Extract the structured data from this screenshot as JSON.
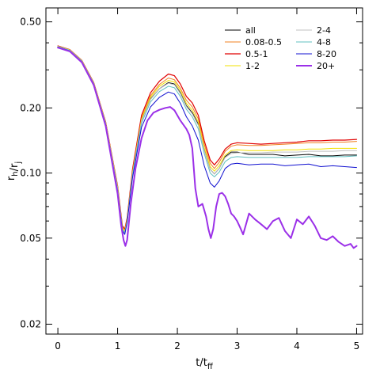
{
  "chart_data": {
    "type": "line",
    "title": "",
    "xlabel": "t/t_ff",
    "ylabel": "r_h/r_j",
    "xlim": [
      -0.2,
      5.1
    ],
    "ylim": [
      0.018,
      0.58
    ],
    "yscale": "log",
    "grid": false,
    "legend_position": "top-right",
    "x_ticks": [
      {
        "value": 0,
        "label": "0"
      },
      {
        "value": 1,
        "label": "1"
      },
      {
        "value": 2,
        "label": "2"
      },
      {
        "value": 3,
        "label": "3"
      },
      {
        "value": 4,
        "label": "4"
      },
      {
        "value": 5,
        "label": "5"
      }
    ],
    "y_ticks": [
      {
        "value": 0.02,
        "label": "0.02"
      },
      {
        "value": 0.05,
        "label": "0.05"
      },
      {
        "value": 0.1,
        "label": "0.10"
      },
      {
        "value": 0.2,
        "label": "0.20"
      },
      {
        "value": 0.5,
        "label": "0.50"
      }
    ],
    "series": [
      {
        "name": "all",
        "color": "#000000",
        "width": 1,
        "x": [
          0,
          0.2,
          0.4,
          0.6,
          0.8,
          1.0,
          1.08,
          1.12,
          1.16,
          1.25,
          1.4,
          1.55,
          1.7,
          1.85,
          1.95,
          2.05,
          2.15,
          2.25,
          2.35,
          2.45,
          2.55,
          2.62,
          2.7,
          2.8,
          2.9,
          3.0,
          3.2,
          3.4,
          3.6,
          3.8,
          4.0,
          4.2,
          4.4,
          4.6,
          4.8,
          5.0
        ],
        "y": [
          0.385,
          0.37,
          0.33,
          0.26,
          0.17,
          0.085,
          0.055,
          0.053,
          0.06,
          0.1,
          0.175,
          0.22,
          0.245,
          0.262,
          0.258,
          0.235,
          0.205,
          0.19,
          0.168,
          0.128,
          0.104,
          0.099,
          0.105,
          0.119,
          0.125,
          0.125,
          0.122,
          0.122,
          0.122,
          0.12,
          0.121,
          0.122,
          0.12,
          0.12,
          0.121,
          0.121
        ]
      },
      {
        "name": "0.08-0.5",
        "color": "#f08020",
        "width": 1,
        "x": [
          0,
          0.2,
          0.4,
          0.6,
          0.8,
          1.0,
          1.08,
          1.12,
          1.16,
          1.25,
          1.4,
          1.55,
          1.7,
          1.85,
          1.95,
          2.05,
          2.15,
          2.25,
          2.35,
          2.45,
          2.55,
          2.62,
          2.7,
          2.8,
          2.9,
          3.0,
          3.2,
          3.4,
          3.6,
          3.8,
          4.0,
          4.2,
          4.4,
          4.6,
          4.8,
          5.0
        ],
        "y": [
          0.386,
          0.371,
          0.331,
          0.261,
          0.171,
          0.086,
          0.056,
          0.054,
          0.061,
          0.102,
          0.18,
          0.228,
          0.257,
          0.275,
          0.27,
          0.247,
          0.217,
          0.202,
          0.178,
          0.136,
          0.111,
          0.105,
          0.112,
          0.126,
          0.133,
          0.135,
          0.134,
          0.134,
          0.135,
          0.136,
          0.137,
          0.138,
          0.138,
          0.139,
          0.139,
          0.14
        ]
      },
      {
        "name": "0.5-1",
        "color": "#e00000",
        "width": 1.2,
        "x": [
          0,
          0.2,
          0.4,
          0.6,
          0.8,
          1.0,
          1.08,
          1.12,
          1.16,
          1.25,
          1.4,
          1.55,
          1.7,
          1.85,
          1.95,
          2.05,
          2.15,
          2.25,
          2.35,
          2.45,
          2.55,
          2.62,
          2.7,
          2.8,
          2.9,
          3.0,
          3.2,
          3.4,
          3.6,
          3.8,
          4.0,
          4.2,
          4.4,
          4.6,
          4.8,
          5.0
        ],
        "y": [
          0.387,
          0.372,
          0.332,
          0.262,
          0.172,
          0.087,
          0.057,
          0.055,
          0.062,
          0.104,
          0.185,
          0.235,
          0.266,
          0.287,
          0.282,
          0.258,
          0.226,
          0.211,
          0.185,
          0.141,
          0.115,
          0.109,
          0.116,
          0.129,
          0.136,
          0.138,
          0.137,
          0.136,
          0.137,
          0.138,
          0.139,
          0.141,
          0.141,
          0.142,
          0.142,
          0.143
        ]
      },
      {
        "name": "1-2",
        "color": "#f2e100",
        "width": 1,
        "x": [
          0,
          0.2,
          0.4,
          0.6,
          0.8,
          1.0,
          1.08,
          1.12,
          1.16,
          1.25,
          1.4,
          1.55,
          1.7,
          1.85,
          1.95,
          2.05,
          2.15,
          2.25,
          2.35,
          2.45,
          2.55,
          2.62,
          2.7,
          2.8,
          2.9,
          3.0,
          3.2,
          3.4,
          3.6,
          3.8,
          4.0,
          4.2,
          4.4,
          4.6,
          4.8,
          5.0
        ],
        "y": [
          0.386,
          0.371,
          0.331,
          0.261,
          0.171,
          0.086,
          0.056,
          0.054,
          0.061,
          0.101,
          0.178,
          0.224,
          0.252,
          0.268,
          0.264,
          0.241,
          0.21,
          0.195,
          0.172,
          0.131,
          0.107,
          0.102,
          0.108,
          0.121,
          0.127,
          0.128,
          0.127,
          0.127,
          0.127,
          0.128,
          0.128,
          0.129,
          0.129,
          0.13,
          0.13,
          0.13
        ]
      },
      {
        "name": "2-4",
        "color": "#c0c0c0",
        "width": 1,
        "x": [
          0,
          0.2,
          0.4,
          0.6,
          0.8,
          1.0,
          1.08,
          1.12,
          1.16,
          1.25,
          1.4,
          1.55,
          1.7,
          1.85,
          1.95,
          2.05,
          2.15,
          2.25,
          2.35,
          2.45,
          2.55,
          2.62,
          2.7,
          2.8,
          2.9,
          3.0,
          3.2,
          3.4,
          3.6,
          3.8,
          4.0,
          4.2,
          4.4,
          4.6,
          4.8,
          5.0
        ],
        "y": [
          0.385,
          0.37,
          0.33,
          0.26,
          0.17,
          0.085,
          0.055,
          0.053,
          0.06,
          0.099,
          0.174,
          0.219,
          0.245,
          0.26,
          0.256,
          0.233,
          0.203,
          0.188,
          0.166,
          0.127,
          0.104,
          0.099,
          0.105,
          0.118,
          0.123,
          0.124,
          0.124,
          0.124,
          0.125,
          0.125,
          0.125,
          0.126,
          0.126,
          0.126,
          0.127,
          0.127
        ]
      },
      {
        "name": "4-8",
        "color": "#60c0c0",
        "width": 1,
        "x": [
          0,
          0.2,
          0.4,
          0.6,
          0.8,
          1.0,
          1.08,
          1.12,
          1.16,
          1.25,
          1.4,
          1.55,
          1.7,
          1.85,
          1.95,
          2.05,
          2.15,
          2.25,
          2.35,
          2.45,
          2.55,
          2.62,
          2.7,
          2.8,
          2.9,
          3.0,
          3.2,
          3.4,
          3.6,
          3.8,
          4.0,
          4.2,
          4.4,
          4.6,
          4.8,
          5.0
        ],
        "y": [
          0.384,
          0.369,
          0.329,
          0.259,
          0.169,
          0.084,
          0.055,
          0.053,
          0.06,
          0.098,
          0.17,
          0.213,
          0.238,
          0.252,
          0.248,
          0.226,
          0.197,
          0.182,
          0.16,
          0.123,
          0.1,
          0.096,
          0.101,
          0.113,
          0.118,
          0.119,
          0.118,
          0.118,
          0.118,
          0.118,
          0.118,
          0.119,
          0.119,
          0.119,
          0.119,
          0.12
        ]
      },
      {
        "name": "8-20",
        "color": "#1010d0",
        "width": 1,
        "x": [
          0,
          0.2,
          0.4,
          0.6,
          0.8,
          1.0,
          1.08,
          1.12,
          1.16,
          1.25,
          1.4,
          1.55,
          1.7,
          1.85,
          1.95,
          2.05,
          2.15,
          2.25,
          2.35,
          2.45,
          2.55,
          2.62,
          2.7,
          2.8,
          2.9,
          3.0,
          3.2,
          3.4,
          3.6,
          3.8,
          4.0,
          4.2,
          4.4,
          4.6,
          4.8,
          5.0
        ],
        "y": [
          0.382,
          0.367,
          0.327,
          0.257,
          0.167,
          0.082,
          0.054,
          0.052,
          0.059,
          0.095,
          0.163,
          0.202,
          0.224,
          0.237,
          0.232,
          0.21,
          0.182,
          0.165,
          0.142,
          0.108,
          0.09,
          0.086,
          0.092,
          0.105,
          0.11,
          0.111,
          0.109,
          0.11,
          0.11,
          0.108,
          0.109,
          0.11,
          0.107,
          0.108,
          0.107,
          0.106
        ]
      },
      {
        "name": "20+",
        "color": "#9b30e8",
        "width": 2,
        "x": [
          0,
          0.2,
          0.4,
          0.6,
          0.8,
          1.0,
          1.06,
          1.1,
          1.13,
          1.16,
          1.22,
          1.3,
          1.4,
          1.5,
          1.6,
          1.7,
          1.8,
          1.88,
          1.95,
          2.05,
          2.15,
          2.2,
          2.25,
          2.3,
          2.35,
          2.42,
          2.48,
          2.52,
          2.56,
          2.6,
          2.65,
          2.7,
          2.75,
          2.8,
          2.85,
          2.9,
          2.95,
          3.0,
          3.05,
          3.1,
          3.15,
          3.2,
          3.3,
          3.4,
          3.5,
          3.6,
          3.7,
          3.8,
          3.9,
          4.0,
          4.1,
          4.2,
          4.3,
          4.4,
          4.5,
          4.6,
          4.7,
          4.8,
          4.9,
          4.95,
          5.0
        ],
        "y": [
          0.38,
          0.365,
          0.325,
          0.255,
          0.165,
          0.08,
          0.057,
          0.049,
          0.046,
          0.049,
          0.072,
          0.105,
          0.145,
          0.175,
          0.19,
          0.196,
          0.2,
          0.202,
          0.195,
          0.175,
          0.16,
          0.15,
          0.13,
          0.085,
          0.07,
          0.072,
          0.063,
          0.055,
          0.05,
          0.055,
          0.07,
          0.08,
          0.081,
          0.078,
          0.072,
          0.065,
          0.063,
          0.06,
          0.056,
          0.052,
          0.058,
          0.065,
          0.061,
          0.058,
          0.055,
          0.06,
          0.062,
          0.054,
          0.05,
          0.061,
          0.058,
          0.063,
          0.057,
          0.05,
          0.049,
          0.051,
          0.048,
          0.046,
          0.047,
          0.045,
          0.046
        ]
      }
    ]
  }
}
